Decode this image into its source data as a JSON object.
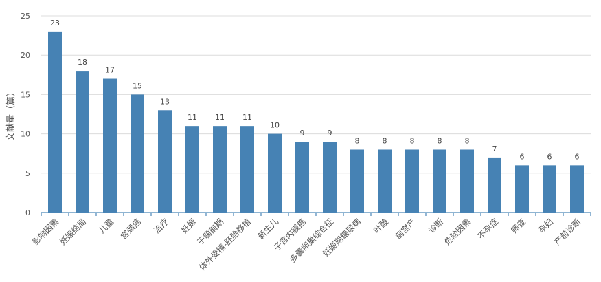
{
  "chart_data": {
    "type": "bar",
    "title": "",
    "xlabel": "",
    "ylabel": "文献量（篇）",
    "ylim": [
      0,
      25
    ],
    "yticks": [
      0,
      5,
      10,
      15,
      20,
      25
    ],
    "grid": true,
    "bar_color": "#4682b4",
    "categories": [
      "影响因素",
      "妊娠结局",
      "儿童",
      "宫颈癌",
      "治疗",
      "妊娠",
      "子痫前期",
      "体外受精-胚胎移植",
      "新生儿",
      "子宫内膜癌",
      "多囊卵巢综合征",
      "妊娠期糖尿病",
      "叶酸",
      "剖宫产",
      "诊断",
      "危险因素",
      "不孕症",
      "筛查",
      "孕妇",
      "产前诊断"
    ],
    "values": [
      23,
      18,
      17,
      15,
      13,
      11,
      11,
      11,
      10,
      9,
      9,
      8,
      8,
      8,
      8,
      8,
      7,
      6,
      6,
      6
    ]
  }
}
